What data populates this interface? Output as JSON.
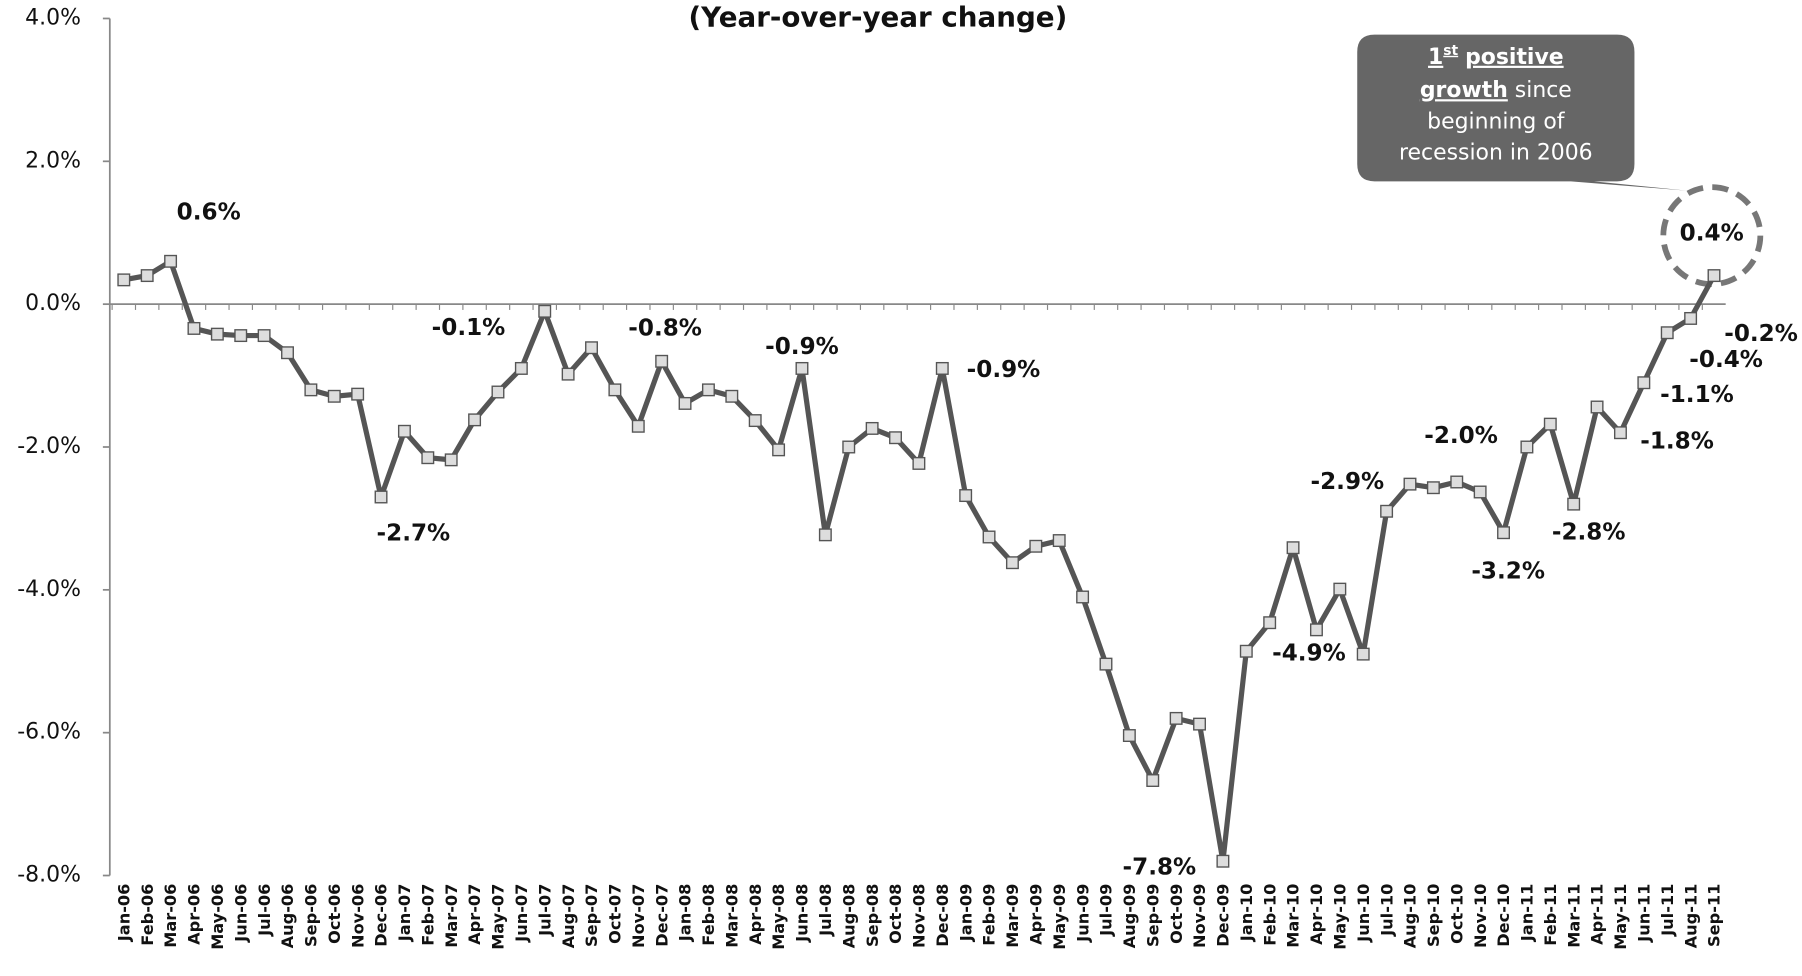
{
  "chart_data": {
    "type": "line",
    "title": "(Year-over-year change)",
    "categories": [
      "Jan-06",
      "Feb-06",
      "Mar-06",
      "Apr-06",
      "May-06",
      "Jun-06",
      "Jul-06",
      "Aug-06",
      "Sep-06",
      "Oct-06",
      "Nov-06",
      "Dec-06",
      "Jan-07",
      "Feb-07",
      "Mar-07",
      "Apr-07",
      "May-07",
      "Jun-07",
      "Jul-07",
      "Aug-07",
      "Sep-07",
      "Oct-07",
      "Nov-07",
      "Dec-07",
      "Jan-08",
      "Feb-08",
      "Mar-08",
      "Apr-08",
      "May-08",
      "Jun-08",
      "Jul-08",
      "Aug-08",
      "Sep-08",
      "Oct-08",
      "Nov-08",
      "Dec-08",
      "Jan-09",
      "Feb-09",
      "Mar-09",
      "Apr-09",
      "May-09",
      "Jun-09",
      "Jul-09",
      "Aug-09",
      "Sep-09",
      "Oct-09",
      "Nov-09",
      "Dec-09",
      "Jan-10",
      "Feb-10",
      "Mar-10",
      "Apr-10",
      "May-10",
      "Jun-10",
      "Jul-10",
      "Aug-10",
      "Sep-10",
      "Oct-10",
      "Nov-10",
      "Dec-10",
      "Jan-11",
      "Feb-11",
      "Mar-11",
      "Apr-11",
      "May-11",
      "Jun-11",
      "Jul-11",
      "Aug-11",
      "Sep-11"
    ],
    "values": [
      0.34,
      0.4,
      0.6,
      -0.34,
      -0.42,
      -0.44,
      -0.44,
      -0.68,
      -1.2,
      -1.29,
      -1.26,
      -2.7,
      -1.78,
      -2.15,
      -2.18,
      -1.62,
      -1.23,
      -0.9,
      -0.1,
      -0.98,
      -0.61,
      -1.2,
      -1.71,
      -0.8,
      -1.39,
      -1.2,
      -1.29,
      -1.63,
      -2.04,
      -0.9,
      -3.23,
      -2.0,
      -1.74,
      -1.87,
      -2.23,
      -0.9,
      -2.68,
      -3.26,
      -3.62,
      -3.39,
      -3.31,
      -4.1,
      -5.04,
      -6.04,
      -6.67,
      -5.8,
      -5.88,
      -7.8,
      -4.86,
      -4.46,
      -3.41,
      -4.56,
      -3.99,
      -4.9,
      -2.9,
      -2.52,
      -2.57,
      -2.49,
      -2.63,
      -3.2,
      -2.0,
      -1.68,
      -2.8,
      -1.44,
      -1.8,
      -1.1,
      -0.4,
      -0.2,
      0.4
    ],
    "value_labels": [
      null,
      null,
      "0.6%",
      null,
      null,
      null,
      null,
      null,
      null,
      null,
      null,
      "-2.7%",
      null,
      null,
      null,
      null,
      null,
      null,
      "-0.1%",
      null,
      null,
      null,
      null,
      "-0.8%",
      null,
      null,
      null,
      null,
      null,
      "-0.9%",
      null,
      null,
      null,
      null,
      null,
      "-0.9%",
      null,
      null,
      null,
      null,
      null,
      null,
      null,
      null,
      null,
      null,
      null,
      "-7.8%",
      null,
      null,
      null,
      null,
      null,
      "-4.9%",
      "-2.9%",
      null,
      null,
      null,
      null,
      "-3.2%",
      "-2.0%",
      null,
      "-2.8%",
      null,
      "-1.8%",
      "-1.1%",
      "-0.4%",
      "-0.2%",
      "0.4%"
    ],
    "color": "#555555",
    "marker_color": "#dddddd",
    "ylim": [
      -8,
      4
    ],
    "yticks": [
      {
        "value": -8,
        "label": "-8.0%"
      },
      {
        "value": -6,
        "label": "-6.0%"
      },
      {
        "value": -4,
        "label": "-4.0%"
      },
      {
        "value": -2,
        "label": "-2.0%"
      },
      {
        "value": 0,
        "label": "0.0%"
      },
      {
        "value": 2,
        "label": "2.0%"
      },
      {
        "value": 4,
        "label": "4.0%"
      }
    ],
    "grid": false,
    "callout": {
      "ordinal": "1",
      "suffix": "st",
      "emphasis": "positive growth",
      "text_line2": "since",
      "text_line3": "beginning of",
      "text_line4": "recession in 2006"
    }
  }
}
